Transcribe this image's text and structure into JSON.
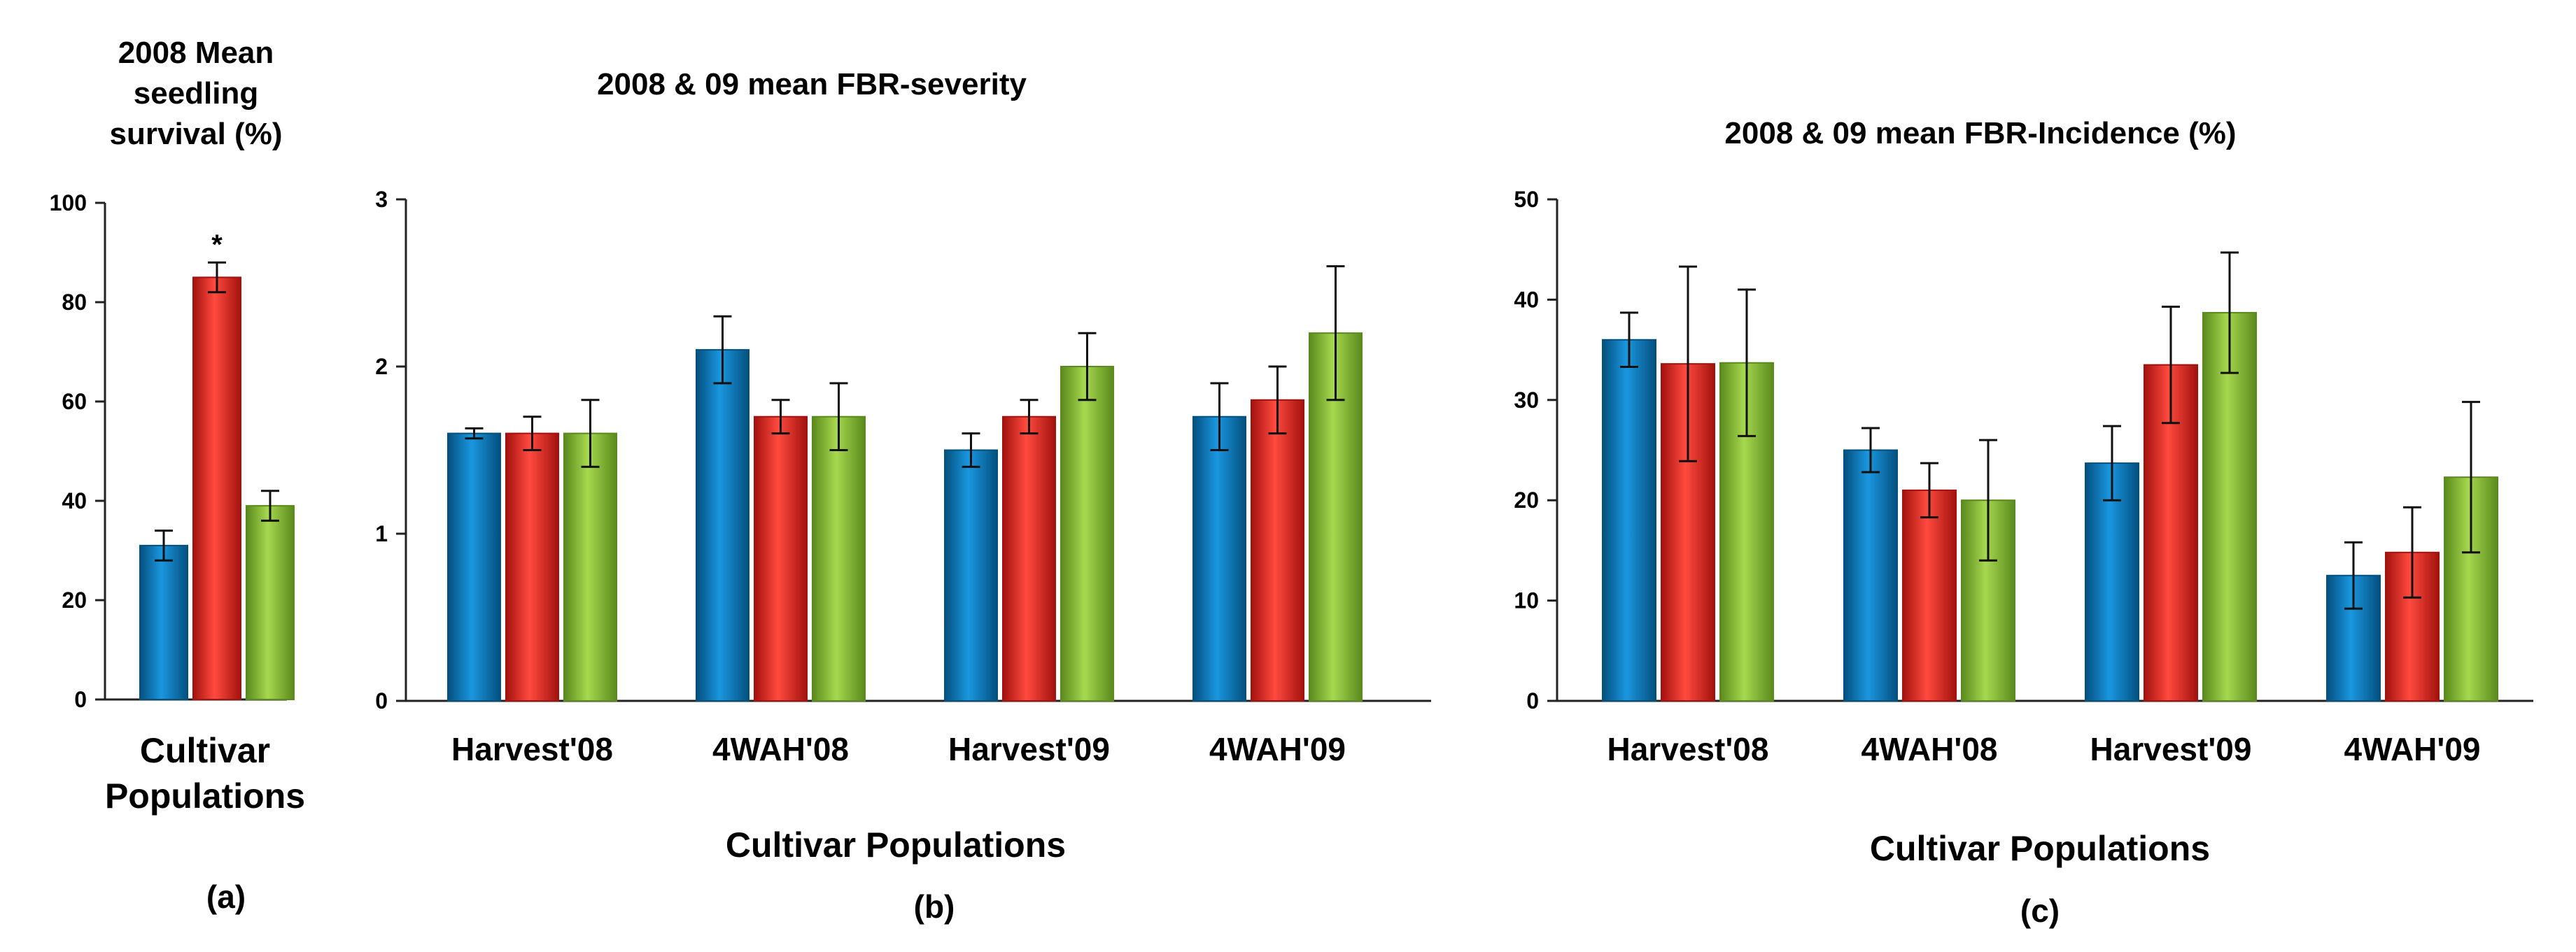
{
  "colors": {
    "series": [
      "#0a7fc4",
      "#ec2a24",
      "#8cc43a"
    ],
    "series_dark": [
      "#04507e",
      "#a3120e",
      "#5a8a1c"
    ],
    "axis": "#222222"
  },
  "chart_data": [
    {
      "type": "bar",
      "title_lines": [
        "2008 Mean",
        "seedling",
        "survival (%)"
      ],
      "xlabel_lines": [
        "Cultivar",
        "Populations"
      ],
      "panel_label": "(a)",
      "ylim": [
        0,
        100
      ],
      "yticks": [
        0,
        20,
        40,
        60,
        80,
        100
      ],
      "ytick_labels": [
        "0",
        "20",
        "40",
        "60",
        "80",
        "100"
      ],
      "categories": [
        ""
      ],
      "series": [
        {
          "values": [
            31
          ],
          "errors": [
            3
          ]
        },
        {
          "values": [
            85
          ],
          "errors": [
            3
          ],
          "annotations": [
            "*"
          ]
        },
        {
          "values": [
            39
          ],
          "errors": [
            3
          ]
        }
      ],
      "grid": false
    },
    {
      "type": "bar",
      "title_lines": [
        "2008 & 09 mean FBR-severity"
      ],
      "xlabel_lines": [
        "Cultivar Populations"
      ],
      "panel_label": "(b)",
      "ylim": [
        0,
        3
      ],
      "yticks": [
        0,
        1,
        2,
        3
      ],
      "ytick_labels": [
        "0",
        "1",
        "2",
        "3"
      ],
      "categories": [
        "Harvest'08",
        "4WAH'08",
        "Harvest'09",
        "4WAH'09"
      ],
      "series": [
        {
          "values": [
            1.6,
            2.1,
            1.5,
            1.7
          ],
          "errors": [
            0.03,
            0.2,
            0.1,
            0.2
          ]
        },
        {
          "values": [
            1.6,
            1.7,
            1.7,
            1.8
          ],
          "errors": [
            0.1,
            0.1,
            0.1,
            0.2
          ]
        },
        {
          "values": [
            1.6,
            1.7,
            2.0,
            2.2
          ],
          "errors": [
            0.2,
            0.2,
            0.2,
            0.4
          ]
        }
      ],
      "grid": false
    },
    {
      "type": "bar",
      "title_lines": [
        "2008 & 09 mean FBR-Incidence (%)"
      ],
      "xlabel_lines": [
        "Cultivar Populations"
      ],
      "panel_label": "(c)",
      "ylim": [
        0,
        50
      ],
      "yticks": [
        0,
        10,
        20,
        30,
        40,
        50
      ],
      "ytick_labels": [
        "0",
        "10",
        "20",
        "30",
        "40",
        "50"
      ],
      "categories": [
        "Harvest'08",
        "4WAH'08",
        "Harvest'09",
        "4WAH'09"
      ],
      "series": [
        {
          "values": [
            36,
            25,
            23.7,
            12.5
          ],
          "errors": [
            2.7,
            2.2,
            3.7,
            3.3
          ]
        },
        {
          "values": [
            33.6,
            21,
            33.5,
            14.8
          ],
          "errors": [
            9.7,
            2.7,
            5.8,
            4.5
          ]
        },
        {
          "values": [
            33.7,
            20,
            38.7,
            22.3
          ],
          "errors": [
            7.3,
            6,
            6,
            7.5
          ]
        }
      ],
      "grid": false
    }
  ]
}
